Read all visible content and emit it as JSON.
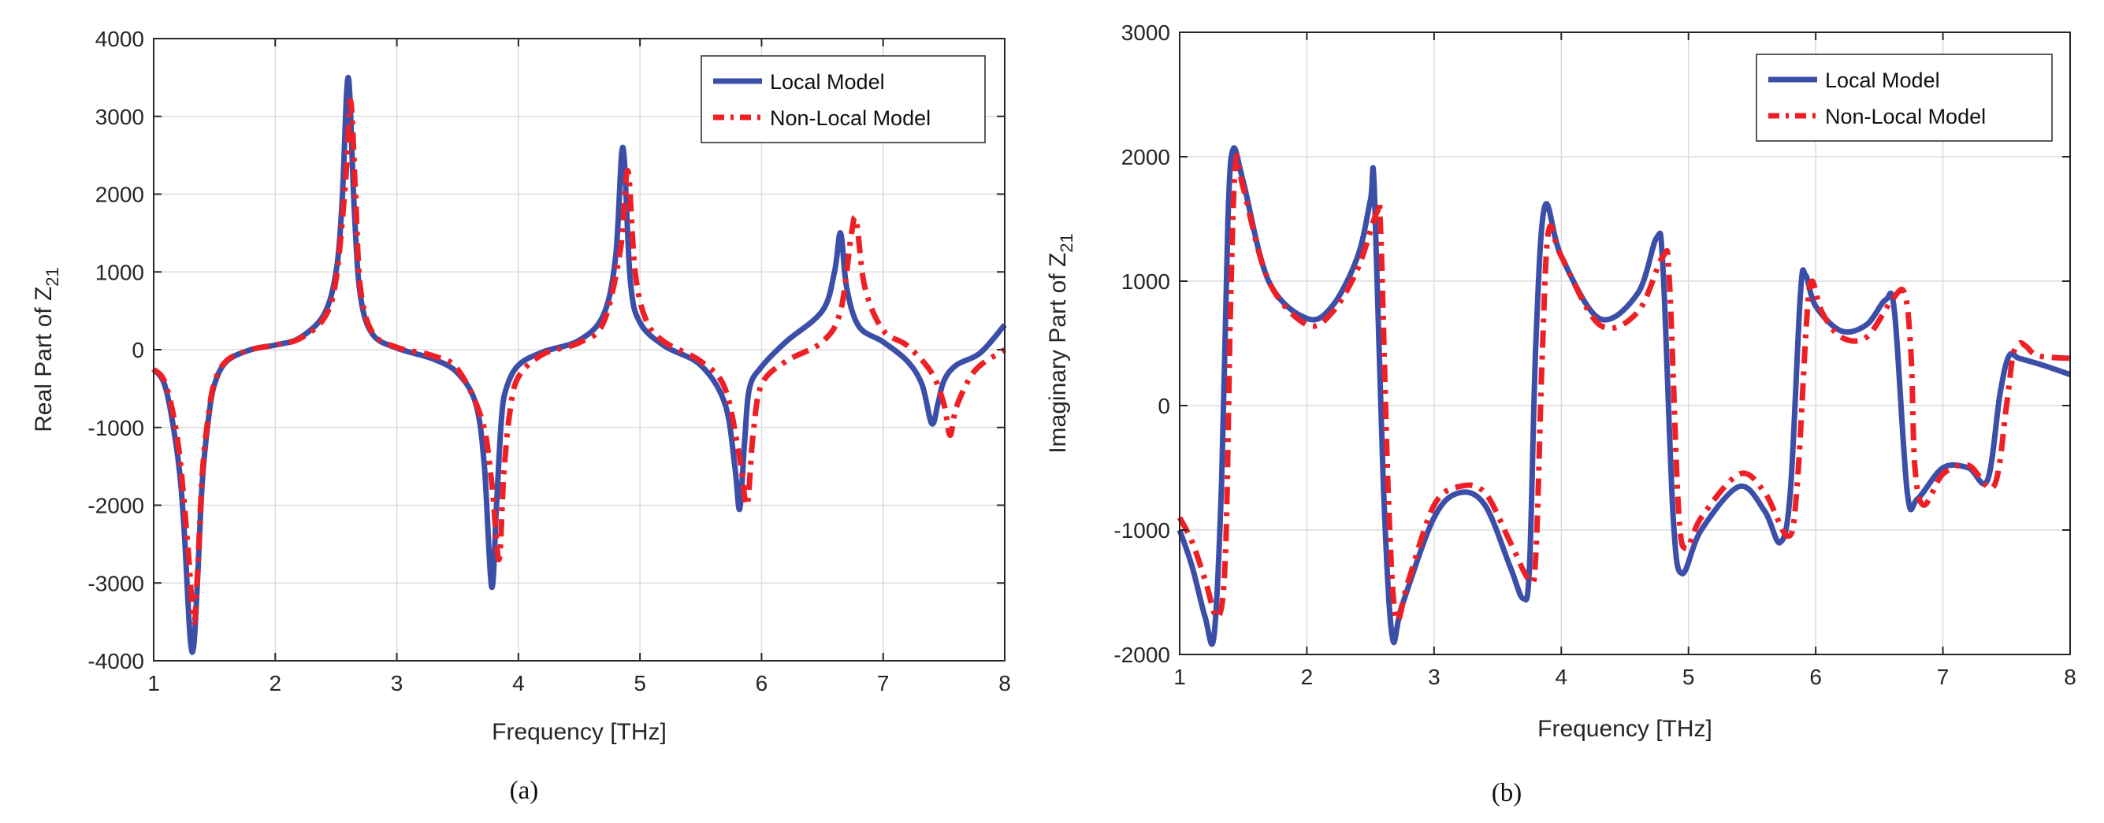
{
  "colors": {
    "local": "#3c4fa8",
    "nonlocal": "#ee2025",
    "grid": "#dcdcdc",
    "axis": "#262626"
  },
  "chart_data": [
    {
      "type": "line",
      "caption": "(a)",
      "xlabel": "Frequency [THz]",
      "ylabel_main": "Real Part of Z",
      "ylabel_sub": "21",
      "xlim": [
        1,
        8
      ],
      "ylim": [
        -4000,
        4000
      ],
      "xticks": [
        1,
        2,
        3,
        4,
        5,
        6,
        7,
        8
      ],
      "yticks": [
        -4000,
        -3000,
        -2000,
        -1000,
        0,
        1000,
        2000,
        3000,
        4000
      ],
      "grid": true,
      "legend_position": "top-right",
      "series": [
        {
          "name": "Local Model",
          "style": "solid",
          "x": [
            1.0,
            1.1,
            1.2,
            1.25,
            1.3,
            1.33,
            1.36,
            1.4,
            1.45,
            1.5,
            1.6,
            1.8,
            2.0,
            2.2,
            2.4,
            2.5,
            2.55,
            2.6,
            2.65,
            2.7,
            2.8,
            3.0,
            3.3,
            3.5,
            3.65,
            3.72,
            3.78,
            3.82,
            3.86,
            3.9,
            4.0,
            4.2,
            4.5,
            4.7,
            4.8,
            4.86,
            4.92,
            5.0,
            5.2,
            5.5,
            5.7,
            5.78,
            5.82,
            5.86,
            5.9,
            6.0,
            6.2,
            6.5,
            6.6,
            6.65,
            6.7,
            6.8,
            7.0,
            7.2,
            7.32,
            7.4,
            7.45,
            7.5,
            7.6,
            7.8,
            8.0
          ],
          "values": [
            -250,
            -500,
            -1400,
            -2300,
            -3700,
            -3800,
            -3000,
            -1700,
            -900,
            -450,
            -150,
            0,
            60,
            150,
            450,
            1000,
            1900,
            3500,
            1800,
            700,
            200,
            20,
            -120,
            -300,
            -700,
            -1500,
            -3050,
            -2000,
            -900,
            -500,
            -200,
            -30,
            120,
            450,
            1200,
            2600,
            900,
            350,
            50,
            -200,
            -700,
            -1500,
            -2050,
            -1200,
            -500,
            -220,
            100,
            500,
            1000,
            1500,
            800,
            300,
            100,
            -150,
            -450,
            -950,
            -700,
            -400,
            -200,
            -40,
            320
          ]
        },
        {
          "name": "Non-Local Model",
          "style": "dashed",
          "x": [
            1.0,
            1.1,
            1.2,
            1.28,
            1.33,
            1.36,
            1.4,
            1.45,
            1.5,
            1.6,
            1.8,
            2.0,
            2.2,
            2.4,
            2.5,
            2.58,
            2.62,
            2.66,
            2.7,
            2.8,
            3.0,
            3.3,
            3.5,
            3.7,
            3.78,
            3.84,
            3.88,
            3.93,
            4.0,
            4.2,
            4.5,
            4.7,
            4.84,
            4.9,
            4.96,
            5.05,
            5.2,
            5.5,
            5.7,
            5.82,
            5.88,
            5.93,
            6.0,
            6.2,
            6.5,
            6.65,
            6.74,
            6.78,
            6.85,
            7.0,
            7.2,
            7.4,
            7.5,
            7.55,
            7.6,
            7.7,
            7.8,
            8.0
          ],
          "values": [
            -250,
            -450,
            -1200,
            -2500,
            -3500,
            -2900,
            -1600,
            -850,
            -420,
            -140,
            0,
            60,
            140,
            400,
            900,
            2200,
            3200,
            2000,
            800,
            220,
            30,
            -80,
            -250,
            -900,
            -1700,
            -2700,
            -1600,
            -800,
            -350,
            -60,
            90,
            350,
            1300,
            2300,
            1000,
            380,
            100,
            -150,
            -500,
            -1400,
            -2000,
            -1100,
            -450,
            -150,
            100,
            500,
            1500,
            1650,
            800,
            250,
            50,
            -300,
            -700,
            -1100,
            -750,
            -400,
            -200,
            0
          ]
        }
      ]
    },
    {
      "type": "line",
      "caption": "(b)",
      "xlabel": "Frequency [THz]",
      "ylabel_main": "Imaginary Part of Z",
      "ylabel_sub": "21",
      "xlim": [
        1,
        8
      ],
      "ylim": [
        -2000,
        3000
      ],
      "xticks": [
        1,
        2,
        3,
        4,
        5,
        6,
        7,
        8
      ],
      "yticks": [
        -2000,
        -1000,
        0,
        1000,
        2000,
        3000
      ],
      "grid": true,
      "legend_position": "top-right",
      "series": [
        {
          "name": "Local Model",
          "style": "solid",
          "x": [
            1.0,
            1.1,
            1.2,
            1.27,
            1.33,
            1.38,
            1.42,
            1.5,
            1.7,
            2.0,
            2.2,
            2.4,
            2.5,
            2.53,
            2.6,
            2.67,
            2.75,
            3.0,
            3.2,
            3.4,
            3.6,
            3.7,
            3.75,
            3.8,
            3.87,
            4.0,
            4.3,
            4.6,
            4.75,
            4.8,
            4.88,
            4.95,
            5.1,
            5.4,
            5.6,
            5.72,
            5.8,
            5.88,
            5.92,
            6.0,
            6.2,
            6.4,
            6.55,
            6.62,
            6.72,
            6.8,
            7.0,
            7.2,
            7.35,
            7.45,
            7.52,
            7.6,
            7.8,
            8.0
          ],
          "values": [
            -1000,
            -1300,
            -1700,
            -1850,
            -600,
            1500,
            2060,
            1800,
            1000,
            700,
            800,
            1200,
            1650,
            1750,
            -600,
            -1850,
            -1600,
            -900,
            -700,
            -800,
            -1300,
            -1550,
            -1300,
            500,
            1600,
            1200,
            700,
            900,
            1350,
            1100,
            -900,
            -1350,
            -1000,
            -650,
            -850,
            -1100,
            -700,
            900,
            1050,
            800,
            600,
            650,
            850,
            750,
            -700,
            -750,
            -500,
            -500,
            -600,
            100,
            400,
            380,
            320,
            250
          ]
        },
        {
          "name": "Non-Local Model",
          "style": "dashed",
          "x": [
            1.0,
            1.1,
            1.2,
            1.3,
            1.36,
            1.4,
            1.44,
            1.5,
            1.7,
            2.0,
            2.2,
            2.4,
            2.55,
            2.58,
            2.64,
            2.7,
            2.8,
            3.0,
            3.2,
            3.4,
            3.6,
            3.75,
            3.8,
            3.85,
            3.9,
            4.0,
            4.3,
            4.6,
            4.8,
            4.85,
            4.92,
            4.98,
            5.1,
            5.4,
            5.6,
            5.78,
            5.85,
            5.93,
            5.97,
            6.05,
            6.2,
            6.4,
            6.6,
            6.7,
            6.75,
            6.78,
            6.85,
            7.0,
            7.2,
            7.4,
            7.5,
            7.55,
            7.6,
            7.65,
            7.75,
            8.0
          ],
          "values": [
            -900,
            -1100,
            -1400,
            -1700,
            -1200,
            800,
            1950,
            1750,
            1000,
            650,
            750,
            1100,
            1550,
            1400,
            -700,
            -1700,
            -1400,
            -800,
            -650,
            -700,
            -1100,
            -1400,
            -1200,
            400,
            1400,
            1200,
            650,
            750,
            1200,
            1000,
            -800,
            -1150,
            -900,
            -550,
            -700,
            -1050,
            -700,
            700,
            1000,
            750,
            550,
            550,
            850,
            900,
            400,
            -500,
            -800,
            -550,
            -480,
            -650,
            0,
            400,
            500,
            480,
            400,
            380
          ]
        }
      ]
    }
  ]
}
